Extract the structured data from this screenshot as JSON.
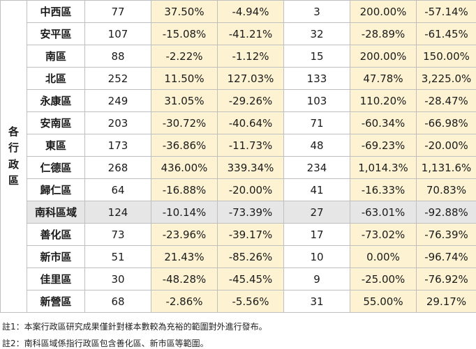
{
  "group_label": "各行政區",
  "rows": [
    {
      "name": "中西區",
      "c1": "77",
      "c2": "37.50%",
      "c3": "-4.94%",
      "c4": "3",
      "c5": "200.00%",
      "c6": "-57.14%"
    },
    {
      "name": "安平區",
      "c1": "107",
      "c2": "-15.08%",
      "c3": "-41.21%",
      "c4": "32",
      "c5": "-28.89%",
      "c6": "-61.45%"
    },
    {
      "name": "南區",
      "c1": "88",
      "c2": "-2.22%",
      "c3": "-1.12%",
      "c4": "15",
      "c5": "200.00%",
      "c6": "150.00%"
    },
    {
      "name": "北區",
      "c1": "252",
      "c2": "11.50%",
      "c3": "127.03%",
      "c4": "133",
      "c5": "47.78%",
      "c6": "3,225.0%"
    },
    {
      "name": "永康區",
      "c1": "249",
      "c2": "31.05%",
      "c3": "-29.26%",
      "c4": "103",
      "c5": "110.20%",
      "c6": "-28.47%"
    },
    {
      "name": "安南區",
      "c1": "203",
      "c2": "-30.72%",
      "c3": "-40.64%",
      "c4": "71",
      "c5": "-60.34%",
      "c6": "-66.98%"
    },
    {
      "name": "東區",
      "c1": "173",
      "c2": "-36.86%",
      "c3": "-11.73%",
      "c4": "48",
      "c5": "-69.23%",
      "c6": "-20.00%"
    },
    {
      "name": "仁德區",
      "c1": "268",
      "c2": "436.00%",
      "c3": "339.34%",
      "c4": "234",
      "c5": "1,014.3%",
      "c6": "1,131.6%"
    },
    {
      "name": "歸仁區",
      "c1": "64",
      "c2": "-16.88%",
      "c3": "-20.00%",
      "c4": "41",
      "c5": "-16.33%",
      "c6": "70.83%"
    },
    {
      "name": "南科區域",
      "c1": "124",
      "c2": "-10.14%",
      "c3": "-73.39%",
      "c4": "27",
      "c5": "-63.01%",
      "c6": "-92.88%"
    },
    {
      "name": "善化區",
      "c1": "73",
      "c2": "-23.96%",
      "c3": "-39.17%",
      "c4": "17",
      "c5": "-73.02%",
      "c6": "-76.39%"
    },
    {
      "name": "新市區",
      "c1": "51",
      "c2": "21.43%",
      "c3": "-85.26%",
      "c4": "10",
      "c5": "0.00%",
      "c6": "-96.74%"
    },
    {
      "name": "佳里區",
      "c1": "30",
      "c2": "-48.28%",
      "c3": "-45.45%",
      "c4": "9",
      "c5": "-25.00%",
      "c6": "-76.92%"
    },
    {
      "name": "新營區",
      "c1": "68",
      "c2": "-2.86%",
      "c3": "-5.56%",
      "c4": "31",
      "c5": "55.00%",
      "c6": "29.17%"
    }
  ],
  "notes": [
    "註1：本案行政區研究成果僅針對樣本數較為充裕的範圍對外進行發布。",
    "註2：南科區域係指行政區包含善化區、新市區等範圍。"
  ],
  "colors": {
    "highlight_cell": "#fdf3d2",
    "highlight_row": "#e6e6e6",
    "border": "#bfbfbf"
  }
}
